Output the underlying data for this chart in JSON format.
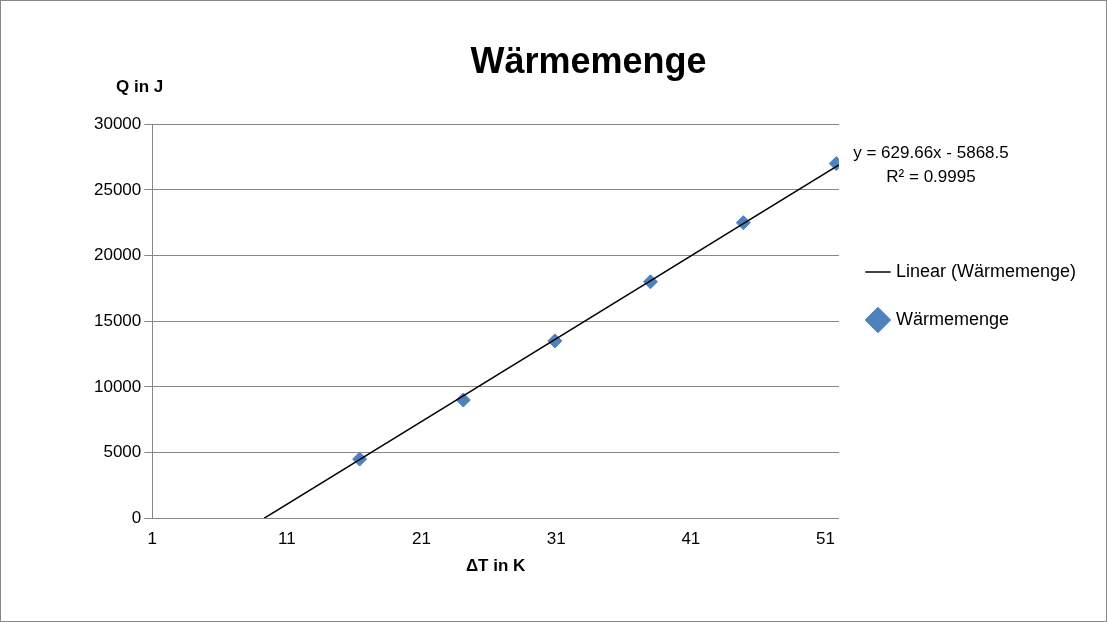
{
  "chart_data": {
    "type": "scatter",
    "title": "Wärmemenge",
    "xlabel": "ΔT in K",
    "ylabel": "Q in J",
    "xlim": [
      1,
      52
    ],
    "xticks": [
      1,
      11,
      21,
      31,
      41,
      51
    ],
    "ylim": [
      0,
      30000
    ],
    "yticks": [
      0,
      5000,
      10000,
      15000,
      20000,
      25000,
      30000
    ],
    "grid": "y",
    "legend": "right",
    "marker": "diamond",
    "series": [
      {
        "name": "Wärmemenge",
        "color": "#4f81bd",
        "x": [
          16.4,
          24.1,
          30.9,
          38.0,
          44.9,
          51.8
        ],
        "values": [
          4500,
          9000,
          13500,
          18000,
          22500,
          27000
        ]
      },
      {
        "name": "Linear (Wärmemenge)",
        "type": "line",
        "color": "#000000",
        "marker": "none",
        "x": [
          9.32,
          52
        ],
        "values": [
          0,
          26900
        ]
      }
    ],
    "annotations": [
      "y = 629.66x - 5868.5",
      "R² = 0.9995"
    ]
  }
}
